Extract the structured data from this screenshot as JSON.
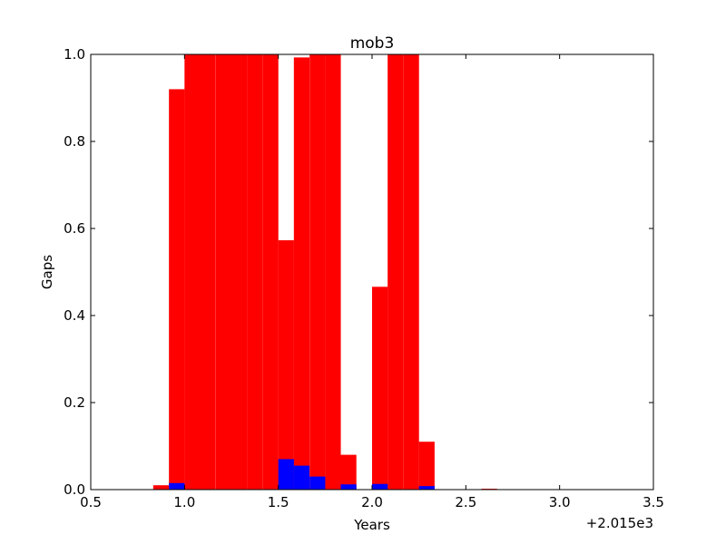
{
  "chart_data": {
    "type": "bar",
    "title": "mob3",
    "xlabel": "Years",
    "ylabel": "Gaps",
    "offset_label": "+2.015e3",
    "xlim": [
      0.5,
      3.5
    ],
    "ylim": [
      0.0,
      1.0
    ],
    "x_ticks": [
      "0.5",
      "1.0",
      "1.5",
      "2.0",
      "2.5",
      "3.0",
      "3.5"
    ],
    "y_ticks": [
      "0.0",
      "0.2",
      "0.4",
      "0.6",
      "0.8",
      "1.0"
    ],
    "grid": false,
    "bin_width": 0.0833,
    "series": [
      {
        "color": "#ff0000",
        "bins": [
          {
            "x": 0.833,
            "value": 0.01
          },
          {
            "x": 0.917,
            "value": 0.92
          },
          {
            "x": 1.0,
            "value": 1.0
          },
          {
            "x": 1.083,
            "value": 1.0
          },
          {
            "x": 1.167,
            "value": 1.0
          },
          {
            "x": 1.25,
            "value": 1.0
          },
          {
            "x": 1.333,
            "value": 1.0
          },
          {
            "x": 1.417,
            "value": 1.0
          },
          {
            "x": 1.5,
            "value": 0.573
          },
          {
            "x": 1.583,
            "value": 0.993
          },
          {
            "x": 1.667,
            "value": 1.0
          },
          {
            "x": 1.75,
            "value": 1.0
          },
          {
            "x": 1.833,
            "value": 0.08
          },
          {
            "x": 2.0,
            "value": 0.466
          },
          {
            "x": 2.083,
            "value": 1.0
          },
          {
            "x": 2.167,
            "value": 1.0
          },
          {
            "x": 2.25,
            "value": 0.11
          },
          {
            "x": 2.583,
            "value": 0.002
          }
        ]
      },
      {
        "color": "#0000ff",
        "bins": [
          {
            "x": 0.917,
            "value": 0.015
          },
          {
            "x": 1.5,
            "value": 0.07
          },
          {
            "x": 1.583,
            "value": 0.055
          },
          {
            "x": 1.667,
            "value": 0.03
          },
          {
            "x": 1.833,
            "value": 0.012
          },
          {
            "x": 2.0,
            "value": 0.013
          },
          {
            "x": 2.25,
            "value": 0.008
          }
        ]
      }
    ]
  }
}
